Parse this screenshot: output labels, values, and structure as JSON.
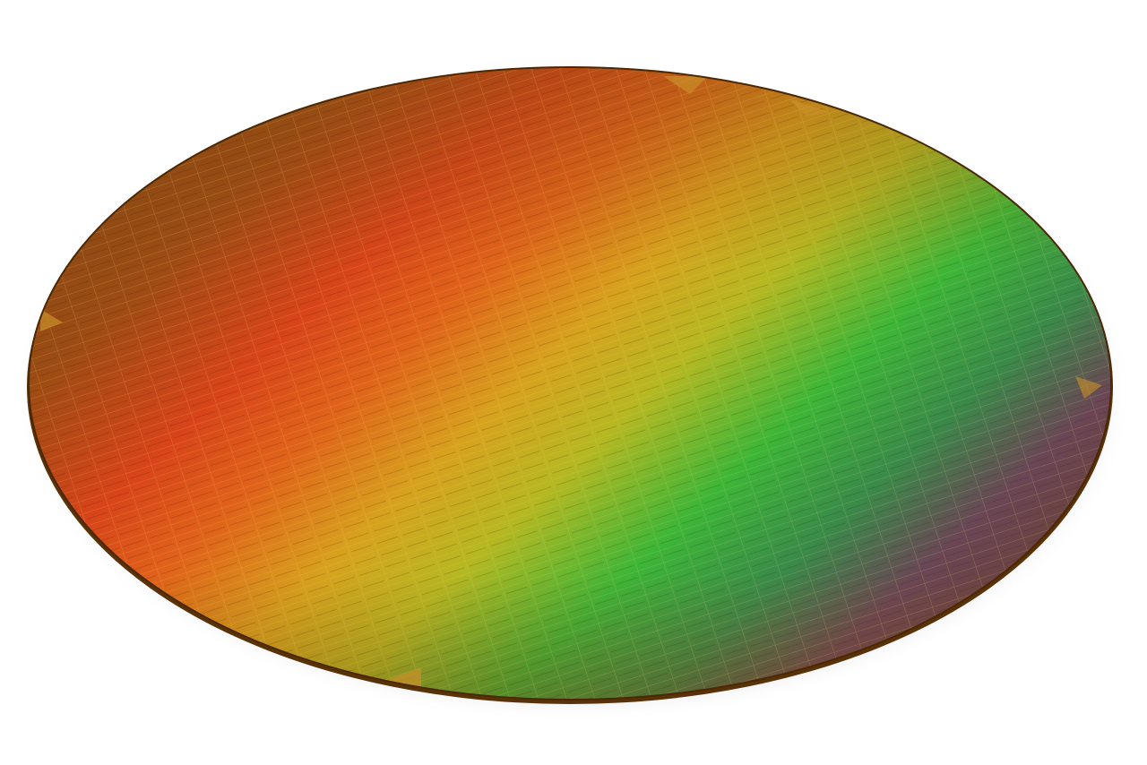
{
  "subject": {
    "kind": "silicon-wafer",
    "colors": {
      "base": "#8a4c12",
      "edge": "#5a3208",
      "red_band": "#e0401a",
      "orange_band": "#e98a1a",
      "yellow_band": "#c9c020",
      "green_band": "#2fb83a",
      "purple_band": "#6a4a5a",
      "background": "#ffffff",
      "shadow": "#9a9a9a"
    }
  }
}
